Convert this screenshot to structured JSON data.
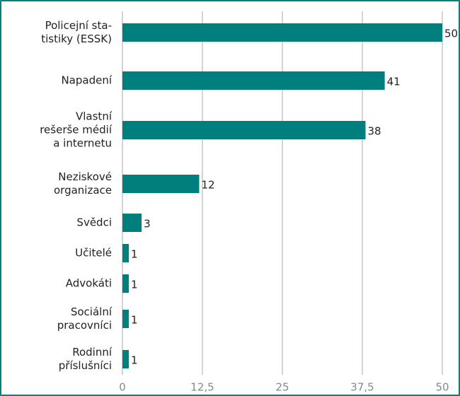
{
  "chart_data": {
    "type": "bar",
    "orientation": "horizontal",
    "categories": [
      "Policejní sta-\ntistiky (ESSK)",
      "Napadení",
      "Vlastní\nrešerše médií\na internetu",
      "Neziskové\norganizace",
      "Svědci",
      "Učitelé",
      "Advokáti",
      "Sociální\npracovníci",
      "Rodinní\npříslušníci"
    ],
    "values": [
      50,
      41,
      38,
      12,
      3,
      1,
      1,
      1,
      1
    ],
    "color": "#007f7e",
    "xlim": [
      0,
      50
    ],
    "xticks": [
      0,
      {
        "value": 12.5,
        "label": "12,5"
      },
      25,
      {
        "value": 37.5,
        "label": "37,5"
      },
      50
    ],
    "grid": true
  }
}
